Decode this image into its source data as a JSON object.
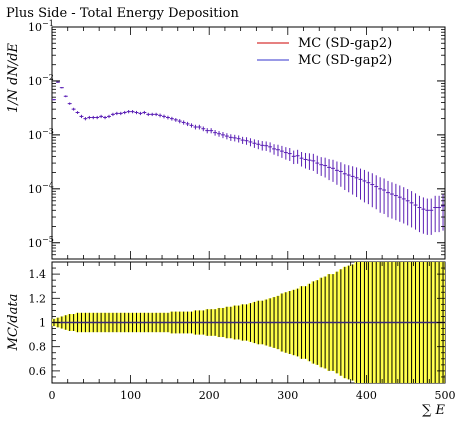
{
  "chart_data": [
    {
      "type": "scatter",
      "title": "Plus Side - Total Energy Deposition",
      "ylabel": "1/N dN/dE",
      "yscale": "log",
      "ylim": [
        5e-06,
        0.1
      ],
      "xlim": [
        0,
        500
      ],
      "y_ticks": [
        {
          "value": 0.1,
          "base": "10",
          "exp": "−1"
        },
        {
          "value": 0.01,
          "base": "10",
          "exp": "−2"
        },
        {
          "value": 0.001,
          "base": "10",
          "exp": "−3"
        },
        {
          "value": 0.0001,
          "base": "10",
          "exp": "−4"
        },
        {
          "value": 1e-05,
          "base": "10",
          "exp": "−5"
        }
      ],
      "legend_position": "top-right",
      "legend": [
        {
          "label": "MC (SD-gap2)",
          "color": "#cc0000"
        },
        {
          "label": "MC (SD-gap2)",
          "color": "#3333cc"
        }
      ],
      "series": [
        {
          "name": "MC (SD-gap2)",
          "color": "#5a1fb5",
          "bin_width": 5,
          "x": [
            2.5,
            7.5,
            12.5,
            17.5,
            22.5,
            27.5,
            32.5,
            37.5,
            42.5,
            47.5,
            52.5,
            57.5,
            62.5,
            67.5,
            72.5,
            77.5,
            82.5,
            87.5,
            92.5,
            97.5,
            102.5,
            107.5,
            112.5,
            117.5,
            122.5,
            127.5,
            132.5,
            137.5,
            142.5,
            147.5,
            152.5,
            157.5,
            162.5,
            167.5,
            172.5,
            177.5,
            182.5,
            187.5,
            192.5,
            197.5,
            202.5,
            207.5,
            212.5,
            217.5,
            222.5,
            227.5,
            232.5,
            237.5,
            242.5,
            247.5,
            252.5,
            257.5,
            262.5,
            267.5,
            272.5,
            277.5,
            282.5,
            287.5,
            292.5,
            297.5,
            302.5,
            307.5,
            312.5,
            317.5,
            322.5,
            327.5,
            332.5,
            337.5,
            342.5,
            347.5,
            352.5,
            357.5,
            362.5,
            367.5,
            372.5,
            377.5,
            382.5,
            387.5,
            392.5,
            397.5,
            402.5,
            407.5,
            412.5,
            417.5,
            422.5,
            427.5,
            432.5,
            437.5,
            442.5,
            447.5,
            452.5,
            457.5,
            462.5,
            467.5,
            472.5,
            477.5,
            482.5,
            487.5,
            492.5,
            497.5
          ],
          "y": [
            0.0045,
            0.0095,
            0.0075,
            0.0052,
            0.0038,
            0.003,
            0.0026,
            0.0022,
            0.002,
            0.0021,
            0.0021,
            0.0021,
            0.0022,
            0.0021,
            0.0022,
            0.0024,
            0.0025,
            0.0025,
            0.0026,
            0.0027,
            0.0027,
            0.0026,
            0.0025,
            0.0026,
            0.0024,
            0.0024,
            0.0024,
            0.0023,
            0.0022,
            0.0021,
            0.002,
            0.0019,
            0.0018,
            0.0017,
            0.0016,
            0.0015,
            0.0014,
            0.0014,
            0.0013,
            0.0012,
            0.0012,
            0.0011,
            0.00105,
            0.001,
            0.00095,
            0.0009,
            0.00088,
            0.00085,
            0.0008,
            0.00078,
            0.00074,
            0.0007,
            0.00067,
            0.00064,
            0.00063,
            0.0006,
            0.00055,
            0.00053,
            0.0005,
            0.00047,
            0.00045,
            0.0004,
            0.00041,
            0.00037,
            0.00035,
            0.00034,
            0.00033,
            0.0003,
            0.00028,
            0.00027,
            0.00025,
            0.00024,
            0.00022,
            0.00021,
            0.00019,
            0.00018,
            0.00017,
            0.00016,
            0.00015,
            0.00014,
            0.00013,
            0.00012,
            0.00011,
            0.0001,
            9.5e-05,
            8.5e-05,
            8e-05,
            7.5e-05,
            7e-05,
            6.5e-05,
            6e-05,
            5.5e-05,
            5e-05,
            4.5e-05,
            4.2e-05,
            4e-05,
            4e-05,
            4.5e-05,
            4.5e-05,
            4.8e-05
          ],
          "y_err_rel": [
            0.03,
            0.03,
            0.03,
            0.04,
            0.05,
            0.06,
            0.06,
            0.07,
            0.07,
            0.07,
            0.07,
            0.07,
            0.07,
            0.07,
            0.07,
            0.07,
            0.07,
            0.07,
            0.07,
            0.07,
            0.07,
            0.07,
            0.07,
            0.07,
            0.07,
            0.07,
            0.07,
            0.08,
            0.08,
            0.08,
            0.08,
            0.08,
            0.09,
            0.09,
            0.09,
            0.09,
            0.1,
            0.1,
            0.1,
            0.11,
            0.11,
            0.12,
            0.12,
            0.13,
            0.13,
            0.14,
            0.14,
            0.15,
            0.15,
            0.16,
            0.17,
            0.18,
            0.19,
            0.2,
            0.2,
            0.21,
            0.22,
            0.24,
            0.25,
            0.26,
            0.27,
            0.28,
            0.29,
            0.3,
            0.32,
            0.34,
            0.35,
            0.37,
            0.38,
            0.4,
            0.42,
            0.44,
            0.46,
            0.48,
            0.5,
            0.52,
            0.54,
            0.56,
            0.58,
            0.6,
            0.6,
            0.62,
            0.62,
            0.64,
            0.64,
            0.65,
            0.65,
            0.65,
            0.65,
            0.65,
            0.65,
            0.65,
            0.65,
            0.65,
            0.65,
            0.65,
            0.65,
            0.65,
            0.65,
            0.65
          ]
        }
      ]
    },
    {
      "type": "bar",
      "ylabel": "MC/data",
      "xlabel": "∑ E",
      "xlim": [
        0,
        500
      ],
      "ylim": [
        0.5,
        1.5
      ],
      "x_ticks": [
        "0",
        "100",
        "200",
        "300",
        "400",
        "500"
      ],
      "y_ticks": [
        "0.6",
        "0.8",
        "1",
        "1.2",
        "1.4"
      ],
      "ratio_value": 1.0,
      "band_color": "#ffff44",
      "line_color": "#3a2a7a",
      "bin_width": 5,
      "band_half_width": [
        0.03,
        0.04,
        0.05,
        0.06,
        0.07,
        0.07,
        0.08,
        0.08,
        0.08,
        0.08,
        0.08,
        0.08,
        0.08,
        0.08,
        0.08,
        0.08,
        0.08,
        0.08,
        0.08,
        0.08,
        0.08,
        0.08,
        0.08,
        0.08,
        0.08,
        0.08,
        0.08,
        0.08,
        0.08,
        0.08,
        0.09,
        0.09,
        0.09,
        0.09,
        0.09,
        0.09,
        0.1,
        0.1,
        0.1,
        0.11,
        0.11,
        0.11,
        0.12,
        0.12,
        0.13,
        0.13,
        0.14,
        0.14,
        0.15,
        0.15,
        0.16,
        0.17,
        0.18,
        0.18,
        0.19,
        0.2,
        0.21,
        0.22,
        0.24,
        0.25,
        0.26,
        0.27,
        0.28,
        0.3,
        0.3,
        0.32,
        0.34,
        0.35,
        0.37,
        0.38,
        0.4,
        0.4,
        0.42,
        0.44,
        0.46,
        0.47,
        0.48,
        0.5,
        0.5,
        0.5,
        0.5,
        0.5,
        0.5,
        0.5,
        0.5,
        0.5,
        0.5,
        0.5,
        0.5,
        0.5,
        0.5,
        0.5,
        0.5,
        0.5,
        0.5,
        0.5,
        0.5,
        0.5,
        0.5,
        0.5
      ]
    }
  ]
}
